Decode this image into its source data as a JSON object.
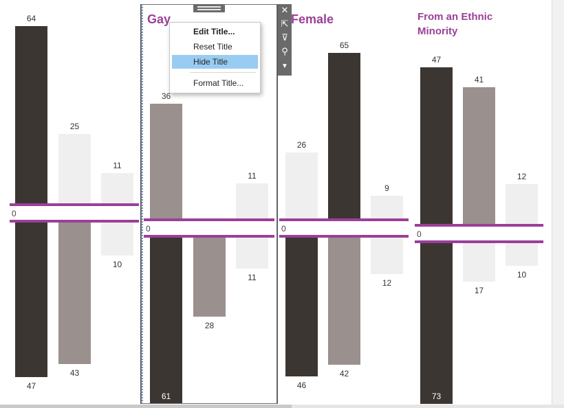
{
  "panes": [
    {
      "title_lines": [],
      "bars": [
        {
          "up": 64,
          "down": 47,
          "color": "#3c3633"
        },
        {
          "up": 25,
          "down": 43,
          "color_up": "#f0efef",
          "color_down": "#9a908e"
        },
        {
          "up": 11,
          "down": 10,
          "color": "#f0efef"
        }
      ]
    },
    {
      "title_lines": [
        "Gay"
      ],
      "bars": [
        {
          "up": 36,
          "down": 61,
          "color": "#9a908e",
          "color_down": "#3c3633"
        },
        {
          "up": null,
          "down": 28,
          "color": "#3c3633",
          "color_down": "#9a908e"
        },
        {
          "up": 11,
          "down": 11,
          "color": "#f0efef"
        }
      ]
    },
    {
      "title_lines": [
        "Female"
      ],
      "bars": [
        {
          "up": 26,
          "down": 46,
          "color_up": "#f0efef",
          "color_down": "#3c3633"
        },
        {
          "up": 65,
          "down": 42,
          "color_up": "#3c3633",
          "color_down": "#9a908e"
        },
        {
          "up": 9,
          "down": 12,
          "color": "#f0efef"
        }
      ]
    },
    {
      "title_lines": [
        "From an Ethnic",
        "Minority"
      ],
      "bars": [
        {
          "up": 47,
          "down": 73,
          "color": "#3c3633"
        },
        {
          "up": 41,
          "down": 17,
          "color_up": "#9a908e",
          "color_down": "#f0efef"
        },
        {
          "up": 12,
          "down": 10,
          "color": "#f0efef"
        }
      ]
    }
  ],
  "zero_label": "0",
  "context_menu": {
    "items": [
      "Edit Title...",
      "Reset Title",
      "Hide Title",
      "Format Title..."
    ],
    "highlighted": "Hide Title"
  },
  "toolbar_icons": [
    "close-icon",
    "expand-icon",
    "filter-icon",
    "pin-icon",
    "more-options-icon"
  ],
  "colors": {
    "accent": "#9b3f99",
    "dark": "#3c3633",
    "mid": "#9a908e",
    "light": "#f0efef"
  }
}
